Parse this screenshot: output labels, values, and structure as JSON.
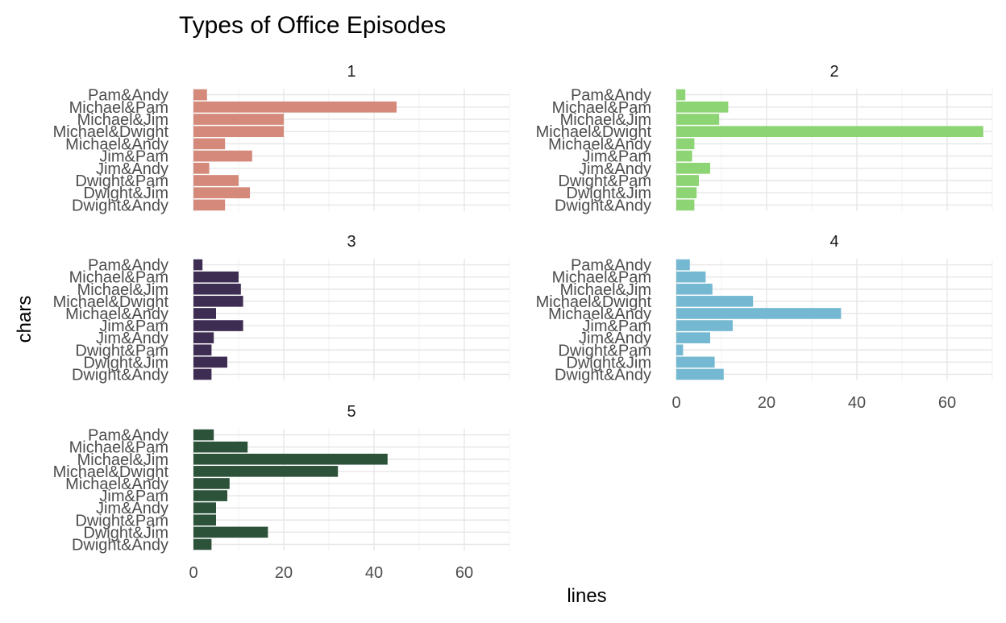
{
  "chart_data": {
    "type": "bar",
    "title": "Types of Office Episodes",
    "xlabel": "lines",
    "ylabel": "chars",
    "xlim": [
      0,
      70
    ],
    "x_ticks": [
      0,
      20,
      40,
      60
    ],
    "categories": [
      "Pam&Andy",
      "Michael&Pam",
      "Michael&Jim",
      "Michael&Dwight",
      "Michael&Andy",
      "Jim&Pam",
      "Jim&Andy",
      "Dwight&Pam",
      "Dwight&Jim",
      "Dwight&Andy"
    ],
    "grid": true,
    "facets": [
      {
        "label": "1",
        "color": "#d4897a",
        "values": [
          3,
          45,
          20,
          20,
          7,
          13,
          3.5,
          10,
          12.5,
          7
        ]
      },
      {
        "label": "2",
        "color": "#8dd474",
        "values": [
          2,
          11.5,
          9.5,
          68,
          4,
          3.5,
          7.5,
          5,
          4.5,
          4
        ]
      },
      {
        "label": "3",
        "color": "#3e2d52",
        "values": [
          2,
          10,
          10.5,
          11,
          5,
          11,
          4.5,
          4,
          7.5,
          4
        ]
      },
      {
        "label": "4",
        "color": "#74b9d1",
        "values": [
          3,
          6.5,
          8,
          17,
          36.5,
          12.5,
          7.5,
          1.5,
          8.5,
          10.5
        ]
      },
      {
        "label": "5",
        "color": "#2c523a",
        "values": [
          4.5,
          12,
          43,
          32,
          8,
          7.5,
          5,
          5,
          16.5,
          4
        ]
      }
    ]
  }
}
